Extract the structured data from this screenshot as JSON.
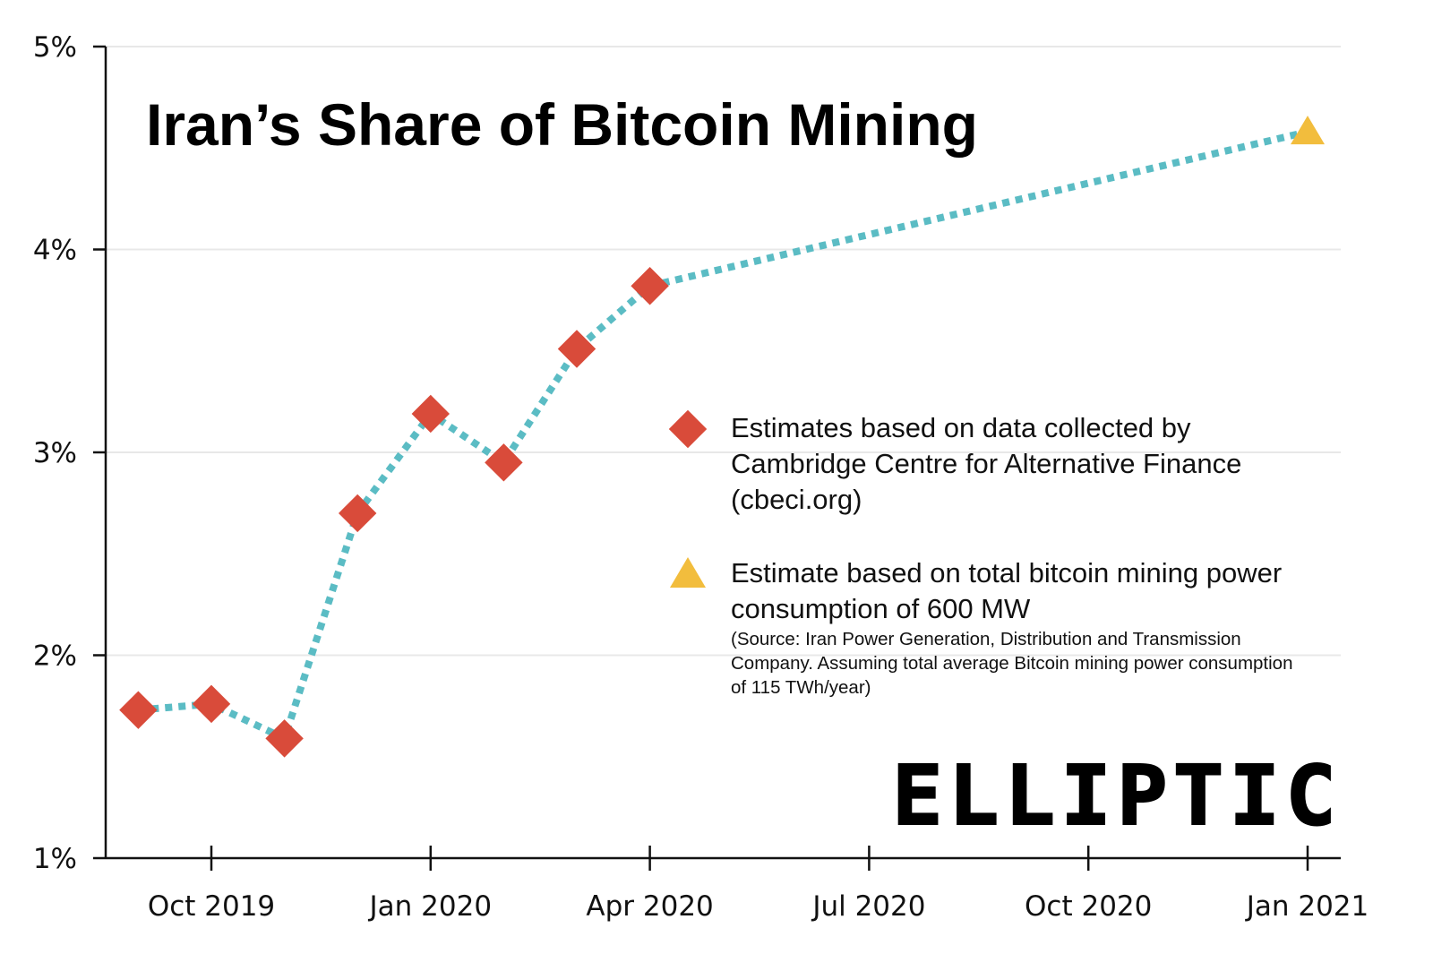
{
  "chart_data": {
    "type": "line",
    "title": "Iran’s Share of Bitcoin Mining",
    "xlabel": "",
    "ylabel": "",
    "ylim": [
      1,
      5
    ],
    "y_ticks": [
      "1%",
      "2%",
      "3%",
      "4%",
      "5%"
    ],
    "x_ticks": [
      "Oct 2019",
      "Jan 2020",
      "Apr 2020",
      "Jul 2020",
      "Oct 2020",
      "Jan 2021"
    ],
    "x_tick_months": [
      "2019-10",
      "2020-01",
      "2020-04",
      "2020-07",
      "2020-10",
      "2021-01"
    ],
    "grid": "horizontal",
    "line_style": "dotted",
    "line_color": "#5bbcc4",
    "series": [
      {
        "name": "Estimates based on data collected by Cambridge Centre for Alternative Finance (cbeci.org)",
        "marker": "diamond",
        "color": "#d94b3a",
        "x": [
          "2019-09",
          "2019-10",
          "2019-11",
          "2019-12",
          "2020-01",
          "2020-02",
          "2020-03",
          "2020-04"
        ],
        "y": [
          1.73,
          1.76,
          1.59,
          2.7,
          3.19,
          2.95,
          3.51,
          3.82
        ]
      },
      {
        "name": "Estimate based on total bitcoin mining power consumption of 600 MW",
        "marker": "triangle",
        "color": "#f2bd3d",
        "x": [
          "2021-01"
        ],
        "y": [
          4.58
        ]
      }
    ],
    "legend": {
      "placement": "center-right",
      "items": [
        {
          "lines": [
            "Estimates based on data collected by",
            "Cambridge Centre for Alternative Finance",
            "(cbeci.org)"
          ]
        },
        {
          "lines": [
            "Estimate based on total bitcoin mining power",
            "consumption of 600 MW"
          ],
          "note": [
            "(Source: Iran Power Generation, Distribution and Transmission",
            "Company. Assuming total average Bitcoin mining power consumption",
            "of 115 TWh/year)"
          ]
        }
      ]
    },
    "logo": "ELLIPTIC"
  }
}
